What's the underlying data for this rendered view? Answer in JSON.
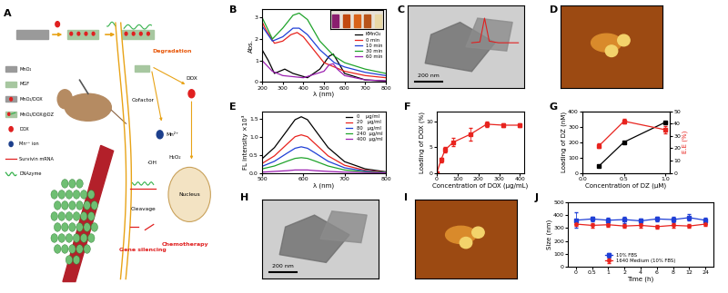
{
  "panels": {
    "A": {
      "panel_label": "A",
      "legend_items": [
        "MnO₂",
        "MGF",
        "MnO₂/DOX",
        "MnO₂/DOX@DZ",
        "DOX",
        "Mn²⁺ ion",
        "Survivin mRNA",
        "DNAzyme"
      ],
      "labels": {
        "degradation": "Degradation",
        "cofactor": "Cofactor",
        "cleavage": "Cleavage",
        "gene_silencing": "Gene silencing",
        "mn": "Mn²⁺",
        "h2o2": "H₂O₂",
        "oh": "·OH",
        "dox": "DOX",
        "nucleus": "Nucleus",
        "chemotherapy": "Chemotherapy"
      }
    },
    "C": {
      "panel_label": "C",
      "scale_bar": "200 nm"
    },
    "D": {
      "panel_label": "D"
    },
    "H": {
      "panel_label": "H",
      "scale_bar": "200 nm"
    },
    "I": {
      "panel_label": "I"
    }
  },
  "chart_data": [
    {
      "panel_label": "B",
      "type": "line",
      "x_label": "λ (nm)",
      "y_label": "Abs.",
      "xlim": [
        200,
        800
      ],
      "xticks": [
        200,
        300,
        400,
        500,
        600,
        700,
        800
      ],
      "ylim": [
        0,
        3.4
      ],
      "yticks": [
        0,
        1,
        2,
        3
      ],
      "legend": "center right",
      "grid": false,
      "series": [
        {
          "name": "KMnO₄",
          "color": "#000000",
          "line_style": "solid",
          "x": [
            200,
            230,
            260,
            310,
            350,
            420,
            480,
            525,
            545,
            570,
            600,
            700,
            800
          ],
          "values": [
            1.5,
            1.0,
            0.4,
            0.6,
            0.4,
            0.2,
            0.6,
            1.2,
            1.3,
            0.9,
            0.4,
            0.1,
            0.05
          ]
        },
        {
          "name": "0 min",
          "color": "#e8231e",
          "line_style": "solid",
          "x": [
            200,
            220,
            260,
            300,
            340,
            370,
            400,
            450,
            500,
            550,
            600,
            700,
            800
          ],
          "values": [
            2.8,
            2.4,
            1.8,
            1.9,
            2.2,
            2.3,
            2.1,
            1.5,
            0.9,
            0.7,
            0.5,
            0.3,
            0.2
          ]
        },
        {
          "name": "10 min",
          "color": "#1f3fd6",
          "line_style": "solid",
          "x": [
            200,
            250,
            300,
            350,
            380,
            420,
            480,
            550,
            600,
            700,
            800
          ],
          "values": [
            2.6,
            1.9,
            2.1,
            2.5,
            2.5,
            2.2,
            1.5,
            0.9,
            0.7,
            0.45,
            0.3
          ]
        },
        {
          "name": "30 min",
          "color": "#1fa32a",
          "line_style": "solid",
          "x": [
            200,
            250,
            300,
            350,
            380,
            420,
            480,
            550,
            600,
            700,
            800
          ],
          "values": [
            3.0,
            2.0,
            2.5,
            3.1,
            3.2,
            2.9,
            1.9,
            1.2,
            0.9,
            0.6,
            0.4
          ]
        },
        {
          "name": "60 min",
          "color": "#9b1fb0",
          "line_style": "solid",
          "x": [
            200,
            250,
            300,
            400,
            500,
            525,
            545,
            565,
            600,
            700,
            800
          ],
          "values": [
            1.0,
            0.5,
            0.3,
            0.2,
            0.5,
            0.8,
            0.85,
            0.6,
            0.3,
            0.1,
            0.05
          ]
        }
      ]
    },
    {
      "panel_label": "E",
      "type": "line",
      "x_label": "λ (nm)",
      "y_label": "FL intensity ×10³",
      "xlim": [
        500,
        800
      ],
      "xticks": [
        500,
        600,
        700,
        800
      ],
      "ylim": [
        0,
        1.7
      ],
      "yticks": [
        {
          "value": 0,
          "label": "0.0"
        },
        {
          "value": 0.5,
          "label": "0.5"
        },
        {
          "value": 1,
          "label": "1.0"
        },
        {
          "value": 1.5,
          "label": "1.5"
        }
      ],
      "legend": "upper right",
      "grid": false,
      "x": [
        500,
        530,
        560,
        580,
        595,
        610,
        630,
        660,
        700,
        750,
        800
      ],
      "series": [
        {
          "name": "0    μg/ml",
          "color": "#000000",
          "line_style": "solid",
          "values": [
            0.39,
            0.7,
            1.16,
            1.47,
            1.55,
            1.47,
            1.16,
            0.7,
            0.31,
            0.11,
            0.03
          ]
        },
        {
          "name": "20   μg/ml",
          "color": "#e8231e",
          "line_style": "solid",
          "values": [
            0.26,
            0.47,
            0.79,
            1.0,
            1.05,
            1.0,
            0.79,
            0.47,
            0.21,
            0.07,
            0.02
          ]
        },
        {
          "name": "80   μg/ml",
          "color": "#1f3fd6",
          "line_style": "solid",
          "values": [
            0.18,
            0.32,
            0.54,
            0.68,
            0.72,
            0.68,
            0.54,
            0.32,
            0.14,
            0.05,
            0.01
          ]
        },
        {
          "name": "240  μg/ml",
          "color": "#1fa32a",
          "line_style": "solid",
          "values": [
            0.11,
            0.19,
            0.32,
            0.4,
            0.42,
            0.4,
            0.32,
            0.19,
            0.08,
            0.03,
            0.01
          ]
        },
        {
          "name": "400  μg/ml",
          "color": "#9b1fb0",
          "line_style": "solid",
          "values": [
            0.02,
            0.04,
            0.06,
            0.08,
            0.08,
            0.08,
            0.06,
            0.04,
            0.02,
            0.01,
            0.0
          ]
        }
      ]
    },
    {
      "panel_label": "F",
      "type": "line",
      "x_label": "Concentration of DOX (μg/mL)",
      "y_label": "Loading of DOX (%)",
      "xlim": [
        0,
        420
      ],
      "xticks": [
        0,
        100,
        200,
        300,
        400
      ],
      "ylim": [
        0,
        12
      ],
      "yticks": [
        0,
        5,
        10
      ],
      "grid": false,
      "series": [
        {
          "color": "#e8231e",
          "marker": "square",
          "line_style": "solid",
          "x": [
            0,
            20,
            40,
            80,
            160,
            240,
            320,
            400
          ],
          "values": [
            0,
            2.5,
            4.5,
            6,
            7.5,
            9.5,
            9.3,
            9.3
          ],
          "errors": [
            0.3,
            0.5,
            0.5,
            0.8,
            1.2,
            0.5,
            0.3,
            0.3
          ]
        }
      ]
    },
    {
      "panel_label": "G",
      "type": "line",
      "x_label": "Concentration of DZ (μM)",
      "y_label": "Loading of DZ (nM)",
      "y2_label": "E.E (%)",
      "xlim": [
        0,
        1.05
      ],
      "xticks": [
        {
          "value": 0,
          "label": "0.0"
        },
        {
          "value": 0.5,
          "label": "0.5"
        },
        {
          "value": 1,
          "label": "1.0"
        }
      ],
      "ylim": [
        0,
        400
      ],
      "yticks": [
        0,
        100,
        200,
        300,
        400
      ],
      "y2lim": [
        0,
        50
      ],
      "y2ticks": [
        0,
        10,
        20,
        30,
        40,
        50
      ],
      "grid": false,
      "series": [
        {
          "color": "#000000",
          "marker": "square",
          "line_style": "solid",
          "x": [
            0.2,
            0.5,
            1.0
          ],
          "values": [
            45,
            200,
            330
          ]
        },
        {
          "color": "#e8231e",
          "marker": "square",
          "line_style": "solid",
          "axis": "y2",
          "x": [
            0.2,
            0.5,
            1.0
          ],
          "values": [
            22,
            42,
            35
          ],
          "errors": [
            2,
            2,
            3
          ]
        }
      ]
    },
    {
      "panel_label": "J",
      "type": "line",
      "x_label": "Time (h)",
      "y_label": "Size (nm)",
      "categories": [
        "0",
        "0.5",
        "1",
        "2",
        "4",
        "6",
        "8",
        "12",
        "24"
      ],
      "ylim": [
        0,
        500
      ],
      "yticks": [
        0,
        100,
        200,
        300,
        400,
        500
      ],
      "legend": "lower center",
      "grid": false,
      "series": [
        {
          "name": "10% FBS",
          "color": "#1f3fd6",
          "marker": "square",
          "line_style": "solid",
          "values": [
            360,
            370,
            360,
            365,
            355,
            370,
            365,
            380,
            360
          ],
          "errors": [
            60,
            20,
            20,
            25,
            20,
            20,
            20,
            25,
            20
          ]
        },
        {
          "name": "1640 Medium (10% FBS)",
          "color": "#e8231e",
          "marker": "circle",
          "line_style": "solid",
          "values": [
            330,
            320,
            325,
            315,
            320,
            310,
            320,
            315,
            330
          ],
          "errors": [
            15,
            15,
            15,
            15,
            15,
            15,
            15,
            15,
            15
          ]
        }
      ]
    }
  ]
}
